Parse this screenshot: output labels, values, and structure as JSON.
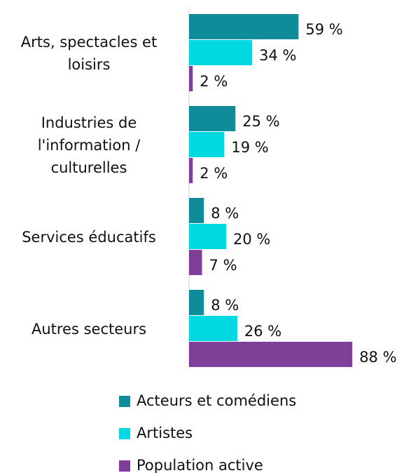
{
  "chart_data": {
    "type": "bar",
    "orientation": "horizontal",
    "categories": [
      "Arts, spectacles et loisirs",
      "Industries de l'information / culturelles",
      "Services éducatifs",
      "Autres secteurs"
    ],
    "series": [
      {
        "name": "Acteurs et comédiens",
        "color": "#0f8b99",
        "values": [
          59,
          25,
          8,
          8
        ],
        "value_labels": [
          "59 %",
          "25 %",
          "8 %",
          "8 %"
        ]
      },
      {
        "name": "Artistes",
        "color": "#00d9e1",
        "values": [
          34,
          19,
          20,
          26
        ],
        "value_labels": [
          "34 %",
          "19 %",
          "20 %",
          "26 %"
        ]
      },
      {
        "name": "Population active",
        "color": "#7e3f98",
        "values": [
          2,
          2,
          7,
          88
        ],
        "value_labels": [
          "2 %",
          "2 %",
          "7 %",
          "88 %"
        ]
      }
    ]
  }
}
